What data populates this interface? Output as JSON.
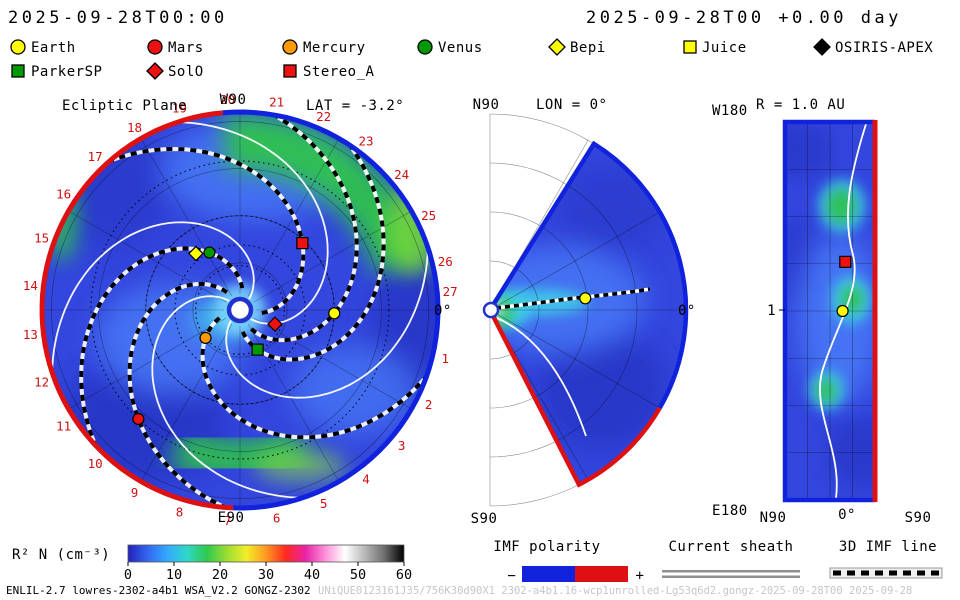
{
  "header": {
    "left": "2025-09-28T00:00",
    "right": "2025-09-28T00 +0.00 day"
  },
  "legend": {
    "row1": [
      {
        "label": "Earth",
        "marker": "circle",
        "color": "#ffff00"
      },
      {
        "label": "Mars",
        "marker": "circle",
        "color": "#ee1111"
      },
      {
        "label": "Mercury",
        "marker": "circle",
        "color": "#ff9900"
      },
      {
        "label": "Venus",
        "marker": "circle",
        "color": "#009900"
      },
      {
        "label": "Bepi",
        "marker": "diamond",
        "color": "#ffff00"
      },
      {
        "label": "Juice",
        "marker": "square",
        "color": "#ffff00"
      },
      {
        "label": "OSIRIS-APEX",
        "marker": "diamond",
        "color": "#000000"
      }
    ],
    "row2": [
      {
        "label": "ParkerSP",
        "marker": "square",
        "color": "#009900"
      },
      {
        "label": "SolO",
        "marker": "diamond",
        "color": "#ee1111"
      },
      {
        "label": "Stereo_A",
        "marker": "square",
        "color": "#ee1111"
      }
    ]
  },
  "chart_data": {
    "type": "heatmap",
    "description": "ENLIL heliospheric MHD simulation of scaled solar-wind density R²N with IMF polarity boundaries, current sheet lines and 3D IMF lines",
    "model_time": "2025-09-28T00:00",
    "forecast_time": "2025-09-28T00 +0.00 day",
    "colorbar": {
      "label": "R² N (cm⁻³)",
      "min": 0,
      "max": 60,
      "ticks": [
        0,
        10,
        20,
        30,
        40,
        50,
        60
      ],
      "gradient": [
        "#2222bb",
        "#3366ee",
        "#33aaff",
        "#2fd8c8",
        "#2fc84f",
        "#9ade32",
        "#f2ee28",
        "#ff9921",
        "#ff2a1e",
        "#e822a8",
        "#ff8fd8",
        "#ffffff",
        "#b9b9b9",
        "#6e6e6e",
        "#000000"
      ]
    },
    "panels": [
      {
        "id": "ecliptic",
        "title": "Ecliptic Plane",
        "subtitle": "LAT = -3.2°",
        "top_label": "W90",
        "bottom_label": "E90",
        "right_label": "0°",
        "radial_extent_au": 2.1,
        "angle_ticks": [
          "1",
          "2",
          "3",
          "4",
          "5",
          "6",
          "7",
          "8",
          "9",
          "10",
          "11",
          "12",
          "13",
          "14",
          "15",
          "16",
          "17",
          "18",
          "19",
          "20",
          "21",
          "22",
          "23",
          "24",
          "25",
          "26",
          "27"
        ],
        "objects": [
          {
            "name": "Earth",
            "marker": "circle",
            "color": "#ffff00",
            "angle_deg": -2,
            "r_au": 1.0,
            "orbit": true,
            "imf": true
          },
          {
            "name": "Mars",
            "marker": "circle",
            "color": "#ee1111",
            "angle_deg": 227,
            "r_au": 1.58,
            "orbit": true,
            "imf": true
          },
          {
            "name": "Mercury",
            "marker": "circle",
            "color": "#ff9900",
            "angle_deg": 219,
            "r_au": 0.47,
            "orbit": true,
            "imf": true
          },
          {
            "name": "Venus",
            "marker": "circle",
            "color": "#009900",
            "angle_deg": 118,
            "r_au": 0.69,
            "orbit": true,
            "imf": true
          },
          {
            "name": "Bepi",
            "marker": "diamond",
            "color": "#ffff00",
            "angle_deg": 128,
            "r_au": 0.76,
            "orbit": false,
            "imf": false
          },
          {
            "name": "SolO",
            "marker": "diamond",
            "color": "#ee1111",
            "angle_deg": -22,
            "r_au": 0.4,
            "orbit": false,
            "imf": false
          },
          {
            "name": "ParkerSP",
            "marker": "square",
            "color": "#009900",
            "angle_deg": -66,
            "r_au": 0.46,
            "orbit": false,
            "imf": true
          },
          {
            "name": "Stereo_A",
            "marker": "square",
            "color": "#ee1111",
            "angle_deg": 47,
            "r_au": 0.97,
            "orbit": false,
            "imf": true
          }
        ]
      },
      {
        "id": "meridional",
        "title": "LON = 0°",
        "top_label": "N90",
        "bottom_label": "S90",
        "right_label": "0°",
        "objects": [
          {
            "name": "Earth",
            "marker": "circle",
            "color": "#ffff00",
            "angle_deg": 7,
            "r_au": 1.0
          }
        ]
      },
      {
        "id": "radial-map",
        "title": "R = 1.0 AU",
        "corner_top": "W180",
        "corner_bottom": "E180",
        "x_ticks": [
          "N90",
          "0°",
          "S90"
        ],
        "y_tick": "1",
        "objects": [
          {
            "name": "Stereo_A",
            "marker": "square",
            "color": "#ee1111",
            "fx": 0.67,
            "fy": 0.37
          },
          {
            "name": "Earth",
            "marker": "circle",
            "color": "#ffff00",
            "fx": 0.64,
            "fy": 0.5
          }
        ]
      }
    ],
    "bottom_legend": {
      "imf_polarity": {
        "label": "IMF polarity",
        "minus": "−",
        "plus": "+",
        "neg_color": "#1122dd",
        "pos_color": "#dd1111"
      },
      "current_sheath": {
        "label": "Current sheath"
      },
      "imf_line": {
        "label": "3D IMF line"
      }
    },
    "footer": {
      "model": "ENLIL-2.7 lowres-2302-a4b1 WSA_V2.2 GONGZ-2302",
      "watermark": "UNiQUE0123161J35/756K30d90X1 2302-a4b1.16-wcp1unrolled-Lg53q6d2.gongz-2025-09-28T00 2025-09-28"
    }
  }
}
